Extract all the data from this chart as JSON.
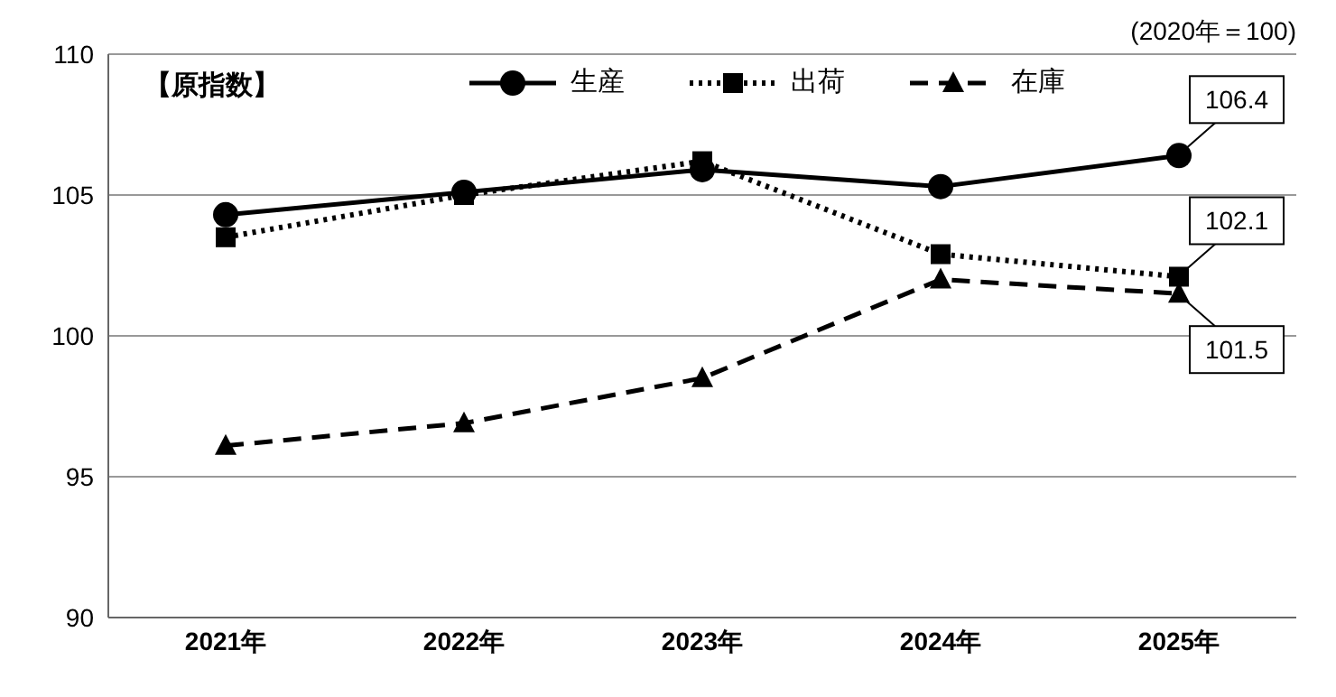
{
  "chart_data": {
    "type": "line",
    "categories": [
      "2021年",
      "2022年",
      "2023年",
      "2024年",
      "2025年"
    ],
    "series": [
      {
        "name": "生産",
        "color": "#000000",
        "marker": "circle",
        "line_style": "solid",
        "values": [
          104.3,
          105.1,
          105.9,
          105.3,
          106.4
        ],
        "value_labels": [
          null,
          null,
          null,
          null,
          "106.4"
        ]
      },
      {
        "name": "出荷",
        "color": "#000000",
        "marker": "square",
        "line_style": "dotted",
        "values": [
          103.5,
          105.0,
          106.2,
          102.9,
          102.1
        ],
        "value_labels": [
          null,
          null,
          null,
          null,
          "102.1"
        ]
      },
      {
        "name": "在庫",
        "color": "#000000",
        "marker": "triangle",
        "line_style": "dashed",
        "values": [
          96.1,
          96.9,
          98.5,
          102.0,
          101.5
        ],
        "value_labels": [
          null,
          null,
          null,
          null,
          "101.5"
        ]
      }
    ],
    "ylim": [
      90,
      110
    ],
    "yticks": [
      90,
      95,
      100,
      105,
      110
    ],
    "grid": "y",
    "legend": "top",
    "annotations": [
      "【原指数】",
      "(2020年＝100)"
    ]
  }
}
